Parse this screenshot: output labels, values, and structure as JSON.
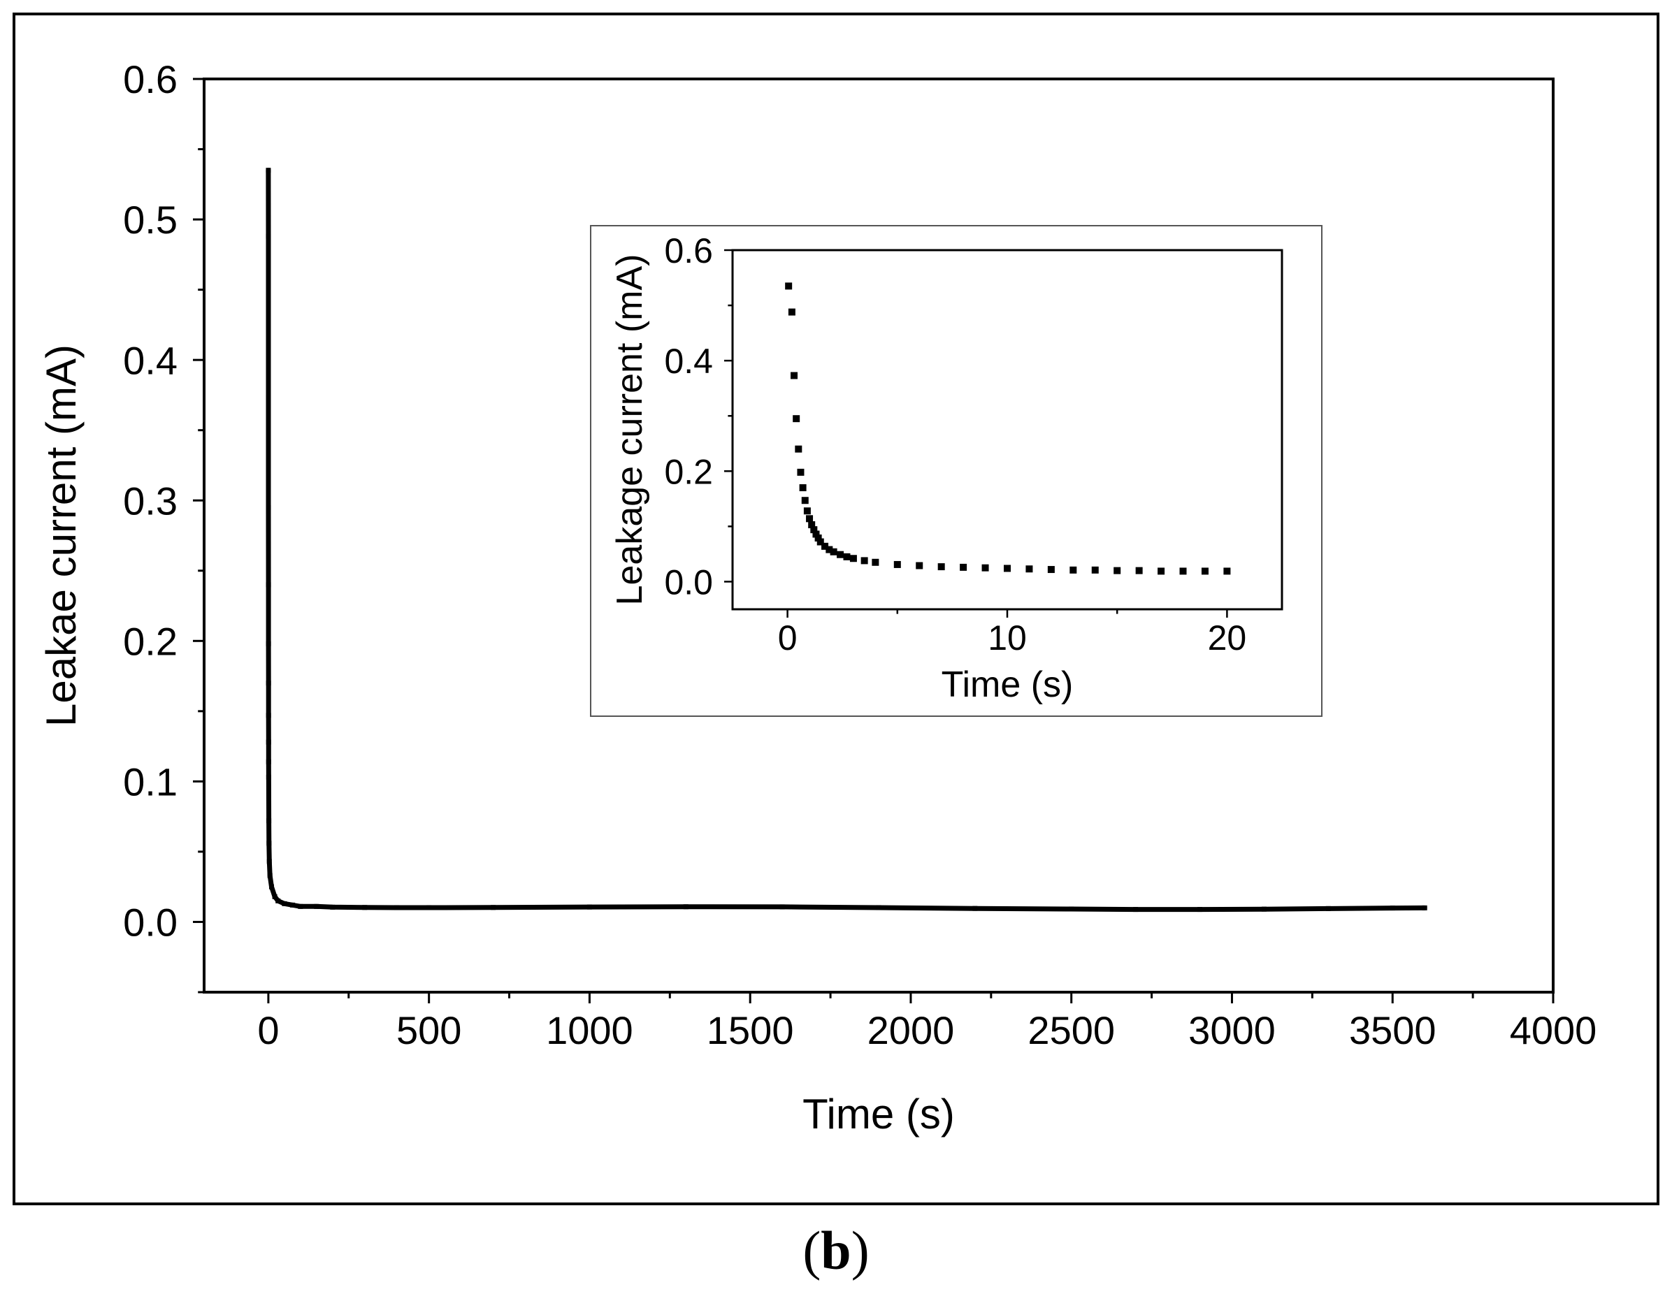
{
  "caption": {
    "open": "(",
    "letter": "b",
    "close": ")"
  },
  "chart_data": [
    {
      "type": "scatter",
      "title": "",
      "xlabel": "Time (s)",
      "ylabel": "Leakae current (mA)",
      "xlim": [
        -200,
        4000
      ],
      "ylim": [
        -0.05,
        0.6
      ],
      "xticks": [
        "0",
        "500",
        "1000",
        "1500",
        "2000",
        "2500",
        "3000",
        "3500",
        "4000"
      ],
      "yticks": [
        "0.0",
        "0.1",
        "0.2",
        "0.3",
        "0.4",
        "0.5",
        "0.6"
      ],
      "grid": false,
      "series": [
        {
          "x": [
            0.05,
            0.1,
            0.2,
            0.3,
            0.4,
            0.5,
            0.6,
            0.7,
            0.8,
            0.9,
            1,
            1.5,
            2,
            3,
            5,
            10,
            20,
            30,
            50,
            75,
            100,
            150,
            200,
            300,
            400,
            500,
            700,
            1000,
            1300,
            1600,
            1900,
            2200,
            2500,
            2700,
            2900,
            3100,
            3300,
            3500,
            3600
          ],
          "y": [
            0.535,
            0.488,
            0.373,
            0.295,
            0.24,
            0.198,
            0.17,
            0.147,
            0.128,
            0.114,
            0.103,
            0.072,
            0.056,
            0.043,
            0.033,
            0.025,
            0.018,
            0.015,
            0.013,
            0.012,
            0.011,
            0.011,
            0.0105,
            0.0103,
            0.0102,
            0.0102,
            0.0103,
            0.0106,
            0.0108,
            0.0107,
            0.0102,
            0.0096,
            0.0092,
            0.0089,
            0.0089,
            0.0091,
            0.0095,
            0.0099,
            0.01
          ]
        }
      ]
    },
    {
      "type": "scatter",
      "title": "",
      "xlabel": "Time (s)",
      "ylabel": "Leakage current (mA)",
      "xlim": [
        -2.5,
        22.5
      ],
      "ylim": [
        -0.05,
        0.6
      ],
      "xticks": [
        "0",
        "10",
        "20"
      ],
      "yticks": [
        "0.0",
        "0.2",
        "0.4",
        "0.6"
      ],
      "grid": false,
      "series": [
        {
          "x": [
            0.05,
            0.2,
            0.3,
            0.4,
            0.5,
            0.6,
            0.7,
            0.8,
            0.9,
            1.0,
            1.1,
            1.2,
            1.3,
            1.4,
            1.5,
            1.7,
            1.9,
            2.1,
            2.4,
            2.7,
            3.0,
            3.5,
            4.0,
            5,
            6,
            7,
            8,
            9,
            10,
            11,
            12,
            13,
            14,
            15,
            16,
            17,
            18,
            19,
            20
          ],
          "y": [
            0.535,
            0.488,
            0.373,
            0.295,
            0.24,
            0.198,
            0.17,
            0.147,
            0.128,
            0.114,
            0.103,
            0.094,
            0.086,
            0.079,
            0.072,
            0.064,
            0.058,
            0.054,
            0.049,
            0.045,
            0.042,
            0.038,
            0.035,
            0.031,
            0.029,
            0.027,
            0.026,
            0.025,
            0.024,
            0.023,
            0.022,
            0.021,
            0.021,
            0.02,
            0.02,
            0.019,
            0.019,
            0.019,
            0.019
          ]
        }
      ]
    }
  ]
}
